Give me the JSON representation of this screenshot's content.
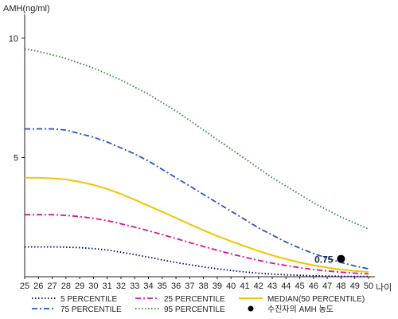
{
  "chart_data": {
    "type": "line",
    "ylabel": "AMH(ng/ml)",
    "xlabel": "나이",
    "xlim": [
      25,
      50
    ],
    "ylim": [
      0,
      11
    ],
    "x_ticks": [
      25,
      26,
      27,
      28,
      29,
      30,
      31,
      32,
      33,
      34,
      35,
      36,
      37,
      38,
      39,
      40,
      41,
      42,
      43,
      44,
      45,
      46,
      47,
      48,
      49,
      50
    ],
    "y_ticks": [
      5,
      10
    ],
    "grid": false,
    "legend_position": "bottom",
    "series": [
      {
        "name": "5 PERCENTILE",
        "color": "#000080",
        "style": "dotted",
        "x": [
          25,
          26,
          27,
          28,
          29,
          30,
          31,
          32,
          33,
          34,
          35,
          36,
          37,
          38,
          39,
          40,
          41,
          42,
          43,
          44,
          45,
          46,
          47,
          48,
          49,
          50
        ],
        "y": [
          1.25,
          1.25,
          1.25,
          1.24,
          1.22,
          1.18,
          1.12,
          1.03,
          0.93,
          0.82,
          0.71,
          0.6,
          0.5,
          0.41,
          0.33,
          0.26,
          0.2,
          0.15,
          0.11,
          0.08,
          0.06,
          0.04,
          0.03,
          0.02,
          0.01,
          0.01
        ]
      },
      {
        "name": "25 PERCENTILE",
        "color": "#e0108f",
        "style": "dashdot",
        "x": [
          25,
          26,
          27,
          28,
          29,
          30,
          31,
          32,
          33,
          34,
          35,
          36,
          37,
          38,
          39,
          40,
          41,
          42,
          43,
          44,
          45,
          46,
          47,
          48,
          49,
          50
        ],
        "y": [
          2.6,
          2.6,
          2.6,
          2.57,
          2.52,
          2.45,
          2.35,
          2.22,
          2.08,
          1.93,
          1.77,
          1.6,
          1.43,
          1.27,
          1.11,
          0.96,
          0.82,
          0.69,
          0.57,
          0.47,
          0.38,
          0.3,
          0.24,
          0.19,
          0.15,
          0.12
        ]
      },
      {
        "name": "75 PERCENTILE",
        "color": "#2b55c8",
        "style": "dashdot",
        "x": [
          25,
          26,
          27,
          28,
          29,
          30,
          31,
          32,
          33,
          34,
          35,
          36,
          37,
          38,
          39,
          40,
          41,
          42,
          43,
          44,
          45,
          46,
          47,
          48,
          49,
          50
        ],
        "y": [
          6.2,
          6.2,
          6.2,
          6.15,
          6.0,
          5.85,
          5.65,
          5.4,
          5.15,
          4.85,
          4.5,
          4.15,
          3.8,
          3.45,
          3.1,
          2.75,
          2.4,
          2.05,
          1.75,
          1.45,
          1.2,
          0.97,
          0.78,
          0.6,
          0.45,
          0.33
        ]
      },
      {
        "name": "95 PERCENTILE",
        "color": "#2e8b3a",
        "style": "dotted",
        "x": [
          25,
          26,
          27,
          28,
          29,
          30,
          31,
          32,
          33,
          34,
          35,
          36,
          37,
          38,
          39,
          40,
          41,
          42,
          43,
          44,
          45,
          46,
          47,
          48,
          49,
          50
        ],
        "y": [
          9.55,
          9.45,
          9.3,
          9.15,
          8.95,
          8.75,
          8.5,
          8.25,
          7.95,
          7.65,
          7.3,
          6.95,
          6.55,
          6.15,
          5.75,
          5.35,
          4.95,
          4.55,
          4.15,
          3.8,
          3.45,
          3.1,
          2.8,
          2.5,
          2.25,
          2.0
        ]
      },
      {
        "name": "MEDIAN(50 PERCENTILE)",
        "color": "#f2c500",
        "style": "solid",
        "x": [
          25,
          26,
          27,
          28,
          29,
          30,
          31,
          32,
          33,
          34,
          35,
          36,
          37,
          38,
          39,
          40,
          41,
          42,
          43,
          44,
          45,
          46,
          47,
          48,
          49,
          50
        ],
        "y": [
          4.15,
          4.15,
          4.13,
          4.08,
          3.98,
          3.85,
          3.68,
          3.47,
          3.23,
          2.98,
          2.72,
          2.46,
          2.2,
          1.95,
          1.71,
          1.49,
          1.28,
          1.08,
          0.9,
          0.74,
          0.6,
          0.48,
          0.38,
          0.3,
          0.24,
          0.2
        ]
      }
    ],
    "marker": {
      "legend_label": "수진자의 AMH 농도",
      "x": 48,
      "y": 0.75,
      "value_label": "0.75"
    },
    "legend_order": [
      "5 PERCENTILE",
      "25 PERCENTILE",
      "MEDIAN(50 PERCENTILE)",
      "75 PERCENTILE",
      "95 PERCENTILE",
      "수진자의 AMH 농도"
    ]
  }
}
